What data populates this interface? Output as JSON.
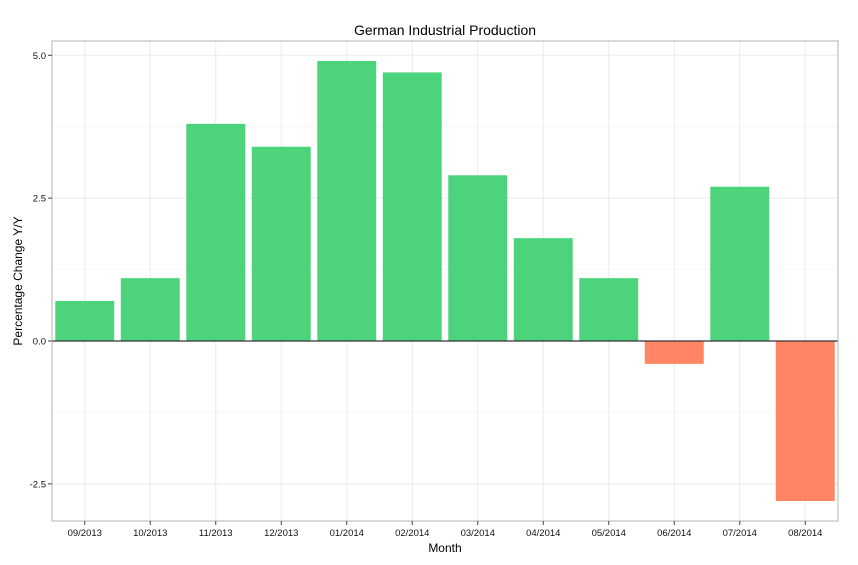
{
  "chart_data": {
    "type": "bar",
    "title": "German Industrial Production",
    "xlabel": "Month",
    "ylabel": "Percentage Change Y/Y",
    "categories": [
      "09/2013",
      "10/2013",
      "11/2013",
      "12/2013",
      "01/2014",
      "02/2014",
      "03/2014",
      "04/2014",
      "05/2014",
      "06/2014",
      "07/2014",
      "08/2014"
    ],
    "values": [
      0.7,
      1.1,
      3.8,
      3.4,
      4.9,
      4.7,
      2.9,
      1.8,
      1.1,
      -0.4,
      2.7,
      -2.8
    ],
    "ylim": [
      -3.15,
      5.25
    ],
    "yticks": [
      -2.5,
      0.0,
      2.5,
      5.0
    ],
    "ytick_labels": [
      "-2.5",
      "0.0",
      "2.5",
      "5.0"
    ],
    "grid": true,
    "legend": "none",
    "colors": {
      "positive": "#4dd37c",
      "negative": "#ff8565",
      "zero_line": "#333333",
      "grid": "#ebebeb",
      "panel_border": "#b3b3b3"
    }
  }
}
